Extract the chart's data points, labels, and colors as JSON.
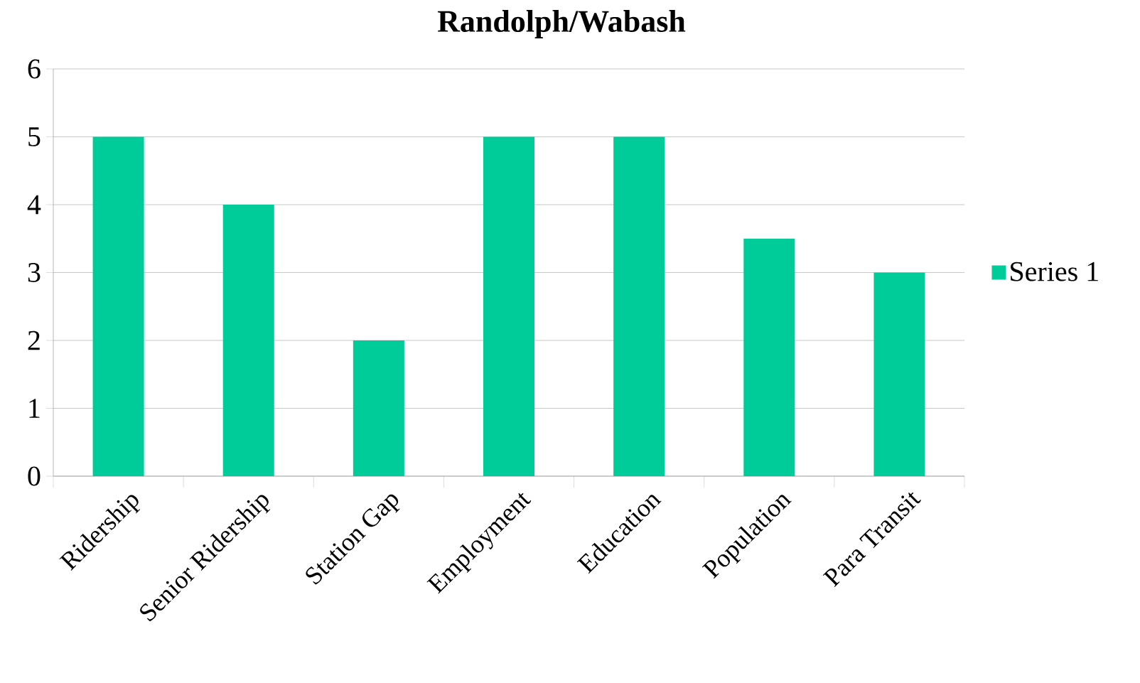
{
  "chart_data": {
    "type": "bar",
    "title": "Randolph/Wabash",
    "categories": [
      "Ridership",
      "Senior Ridership",
      "Station Gap",
      "Employment",
      "Education",
      "Population",
      "Para Transit"
    ],
    "series": [
      {
        "name": "Series 1",
        "color": "#00cc99",
        "values": [
          5,
          4,
          2,
          5,
          5,
          3.5,
          3
        ]
      }
    ],
    "ylim": [
      0,
      6
    ],
    "yticks": [
      0,
      1,
      2,
      3,
      4,
      5,
      6
    ],
    "grid": "y",
    "legend": "right"
  }
}
